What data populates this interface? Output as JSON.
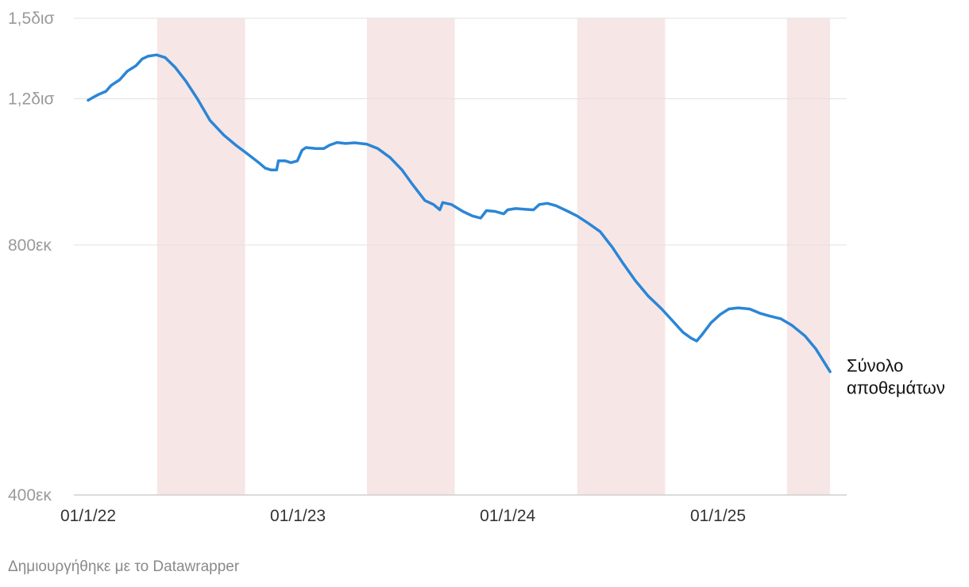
{
  "chart_data": {
    "type": "line",
    "title": "",
    "xlabel": "",
    "ylabel": "",
    "y_scale": "log",
    "ylim": [
      400000,
      1500000
    ],
    "xlim": [
      "2022-01-01",
      "2025-07-15"
    ],
    "grid": true,
    "y_ticks": [
      {
        "value": 400000,
        "label": "400εκ"
      },
      {
        "value": 800000,
        "label": "800εκ"
      },
      {
        "value": 1200000,
        "label": "1,2δισ"
      },
      {
        "value": 1500000,
        "label": "1,5δισ"
      }
    ],
    "x_ticks": [
      {
        "value": "2022-01-01",
        "label": "01/1/22"
      },
      {
        "value": "2023-01-01",
        "label": "01/1/23"
      },
      {
        "value": "2024-01-01",
        "label": "01/1/24"
      },
      {
        "value": "2025-01-01",
        "label": "01/1/25"
      }
    ],
    "shaded_ranges": [
      {
        "start": "2022-05-01",
        "end": "2022-10-01",
        "color": "#f7e6e6"
      },
      {
        "start": "2023-05-01",
        "end": "2023-10-01",
        "color": "#f7e6e6"
      },
      {
        "start": "2024-05-01",
        "end": "2024-10-01",
        "color": "#f7e6e6"
      },
      {
        "start": "2025-05-01",
        "end": "2025-07-15",
        "color": "#f7e6e6"
      }
    ],
    "series": [
      {
        "name": "Σύνολο αποθεμάτων",
        "label_lines": [
          "Σύνολο",
          "αποθεμάτων"
        ],
        "color": "#2a86d6",
        "points": [
          [
            "2022-01-01",
            1195000
          ],
          [
            "2022-01-10",
            1205000
          ],
          [
            "2022-01-20",
            1215000
          ],
          [
            "2022-02-01",
            1225000
          ],
          [
            "2022-02-10",
            1245000
          ],
          [
            "2022-02-25",
            1265000
          ],
          [
            "2022-03-10",
            1295000
          ],
          [
            "2022-03-25",
            1315000
          ],
          [
            "2022-04-05",
            1340000
          ],
          [
            "2022-04-15",
            1350000
          ],
          [
            "2022-04-30",
            1355000
          ],
          [
            "2022-05-15",
            1345000
          ],
          [
            "2022-06-01",
            1310000
          ],
          [
            "2022-06-20",
            1260000
          ],
          [
            "2022-07-10",
            1200000
          ],
          [
            "2022-08-01",
            1130000
          ],
          [
            "2022-08-25",
            1085000
          ],
          [
            "2022-09-15",
            1055000
          ],
          [
            "2022-10-05",
            1030000
          ],
          [
            "2022-10-25",
            1005000
          ],
          [
            "2022-11-05",
            990000
          ],
          [
            "2022-11-15",
            985000
          ],
          [
            "2022-11-25",
            985000
          ],
          [
            "2022-11-28",
            1010000
          ],
          [
            "2022-12-10",
            1010000
          ],
          [
            "2022-12-20",
            1005000
          ],
          [
            "2022-12-31",
            1010000
          ],
          [
            "2023-01-08",
            1040000
          ],
          [
            "2023-01-15",
            1048000
          ],
          [
            "2023-02-01",
            1045000
          ],
          [
            "2023-02-15",
            1045000
          ],
          [
            "2023-02-25",
            1055000
          ],
          [
            "2023-03-10",
            1063000
          ],
          [
            "2023-03-25",
            1060000
          ],
          [
            "2023-04-10",
            1062000
          ],
          [
            "2023-05-01",
            1058000
          ],
          [
            "2023-05-20",
            1045000
          ],
          [
            "2023-06-10",
            1020000
          ],
          [
            "2023-07-01",
            985000
          ],
          [
            "2023-07-20",
            945000
          ],
          [
            "2023-08-10",
            905000
          ],
          [
            "2023-08-25",
            895000
          ],
          [
            "2023-09-05",
            882000
          ],
          [
            "2023-09-10",
            900000
          ],
          [
            "2023-09-25",
            895000
          ],
          [
            "2023-10-15",
            878000
          ],
          [
            "2023-11-01",
            867000
          ],
          [
            "2023-11-15",
            862000
          ],
          [
            "2023-11-25",
            880000
          ],
          [
            "2023-12-10",
            878000
          ],
          [
            "2023-12-25",
            872000
          ],
          [
            "2024-01-01",
            882000
          ],
          [
            "2024-01-15",
            885000
          ],
          [
            "2024-02-01",
            883000
          ],
          [
            "2024-02-15",
            882000
          ],
          [
            "2024-02-25",
            895000
          ],
          [
            "2024-03-10",
            898000
          ],
          [
            "2024-03-25",
            892000
          ],
          [
            "2024-04-15",
            878000
          ],
          [
            "2024-05-01",
            867000
          ],
          [
            "2024-05-20",
            850000
          ],
          [
            "2024-06-10",
            830000
          ],
          [
            "2024-07-01",
            795000
          ],
          [
            "2024-07-20",
            760000
          ],
          [
            "2024-08-10",
            725000
          ],
          [
            "2024-09-01",
            695000
          ],
          [
            "2024-09-25",
            670000
          ],
          [
            "2024-10-15",
            647000
          ],
          [
            "2024-11-01",
            628000
          ],
          [
            "2024-11-15",
            618000
          ],
          [
            "2024-11-25",
            613000
          ],
          [
            "2024-12-05",
            625000
          ],
          [
            "2024-12-20",
            645000
          ],
          [
            "2025-01-05",
            660000
          ],
          [
            "2025-01-20",
            670000
          ],
          [
            "2025-02-05",
            672000
          ],
          [
            "2025-02-25",
            670000
          ],
          [
            "2025-03-15",
            662000
          ],
          [
            "2025-04-01",
            657000
          ],
          [
            "2025-04-20",
            652000
          ],
          [
            "2025-05-10",
            640000
          ],
          [
            "2025-06-01",
            622000
          ],
          [
            "2025-06-20",
            600000
          ],
          [
            "2025-07-15",
            563000
          ]
        ]
      }
    ]
  },
  "footer": {
    "credit": "Δημιουργήθηκε με το Datawrapper"
  }
}
